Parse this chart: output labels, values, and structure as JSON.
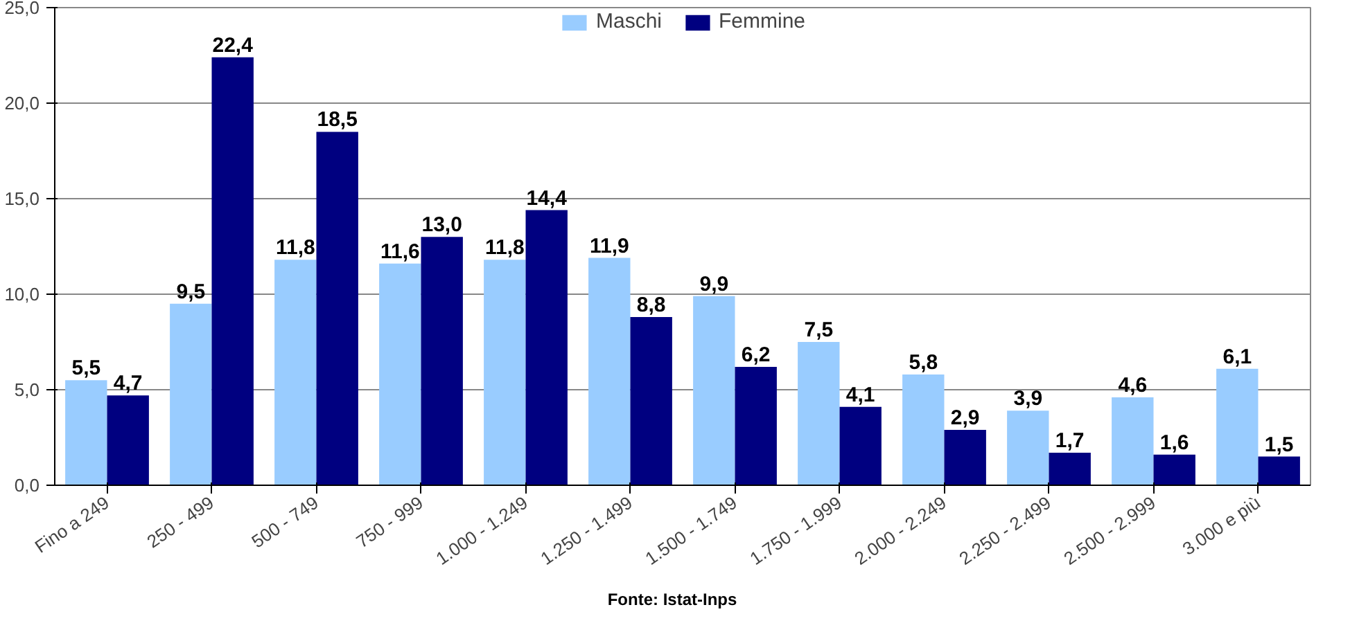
{
  "chart_data": {
    "type": "bar",
    "categories": [
      "Fino a 249",
      "250 - 499",
      "500 - 749",
      "750 - 999",
      "1.000 - 1.249",
      "1.250 - 1.499",
      "1.500 - 1.749",
      "1.750 - 1.999",
      "2.000 - 2.249",
      "2.250 - 2.499",
      "2.500 - 2.999",
      "3.000 e più"
    ],
    "series": [
      {
        "name": "Maschi",
        "color": "#99ccff",
        "values": [
          5.5,
          9.5,
          11.8,
          11.6,
          11.8,
          11.9,
          9.9,
          7.5,
          5.8,
          3.9,
          4.6,
          6.1
        ],
        "value_labels": [
          "5,5",
          "9,5",
          "11,8",
          "11,6",
          "11,8",
          "11,9",
          "9,9",
          "7,5",
          "5,8",
          "3,9",
          "4,6",
          "6,1"
        ]
      },
      {
        "name": "Femmine",
        "color": "#000080",
        "values": [
          4.7,
          22.4,
          18.5,
          13.0,
          14.4,
          8.8,
          6.2,
          4.1,
          2.9,
          1.7,
          1.6,
          1.5
        ],
        "value_labels": [
          "4,7",
          "22,4",
          "18,5",
          "13,0",
          "14,4",
          "8,8",
          "6,2",
          "4,1",
          "2,9",
          "1,7",
          "1,6",
          "1,5"
        ]
      }
    ],
    "ylim": [
      0,
      25
    ],
    "yticks": [
      {
        "value": 0,
        "label": "0,0"
      },
      {
        "value": 5,
        "label": "5,0"
      },
      {
        "value": 10,
        "label": "10,0"
      },
      {
        "value": 15,
        "label": "15,0"
      },
      {
        "value": 20,
        "label": "20,0"
      },
      {
        "value": 25,
        "label": "25,0"
      }
    ],
    "grid": "y",
    "legend": "top",
    "annotations": [
      "Fonte: Istat-Inps"
    ]
  }
}
